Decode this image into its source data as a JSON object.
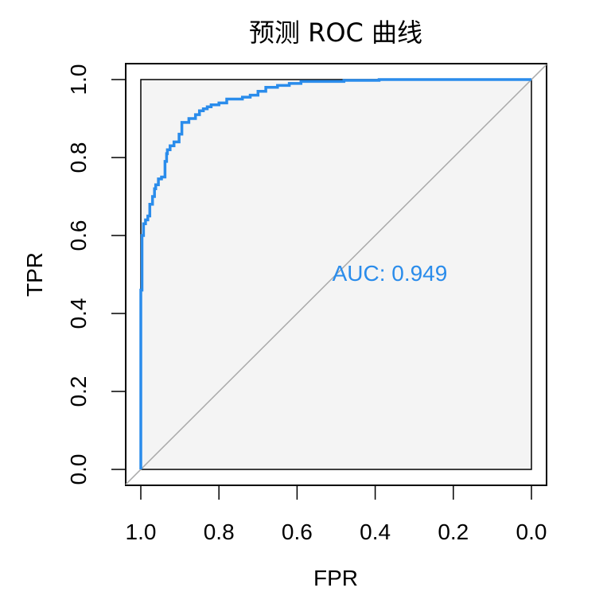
{
  "chart_data": {
    "type": "line",
    "title": "预测 ROC 曲线",
    "xlabel": "FPR",
    "ylabel": "TPR",
    "x_axis_reversed": true,
    "xlim": [
      1.0,
      0.0
    ],
    "ylim": [
      0.0,
      1.0
    ],
    "xticks": [
      "1.0",
      "0.8",
      "0.6",
      "0.4",
      "0.2",
      "0.0"
    ],
    "xtick_values": [
      1.0,
      0.8,
      0.6,
      0.4,
      0.2,
      0.0
    ],
    "yticks": [
      "0.0",
      "0.2",
      "0.4",
      "0.6",
      "0.8",
      "1.0"
    ],
    "ytick_values": [
      0.0,
      0.2,
      0.4,
      0.6,
      0.8,
      1.0
    ],
    "grid": false,
    "auc_label": "AUC: 0.949",
    "auc_label_position": [
      0.51,
      0.48
    ],
    "diagonal": [
      [
        1.0,
        0.0
      ],
      [
        0.0,
        1.0
      ]
    ],
    "series": [
      {
        "specificity": [
          1.0,
          1.0,
          0.997,
          0.997,
          0.993,
          0.993,
          0.988,
          0.988,
          0.982,
          0.982,
          0.977,
          0.977,
          0.97,
          0.97,
          0.965,
          0.965,
          0.962,
          0.962,
          0.955,
          0.955,
          0.947,
          0.947,
          0.938,
          0.938,
          0.934,
          0.934,
          0.932,
          0.932,
          0.925,
          0.925,
          0.915,
          0.915,
          0.902,
          0.902,
          0.895,
          0.895,
          0.877,
          0.877,
          0.86,
          0.86,
          0.85,
          0.85,
          0.84,
          0.84,
          0.83,
          0.83,
          0.82,
          0.82,
          0.8,
          0.8,
          0.78,
          0.78,
          0.74,
          0.74,
          0.72,
          0.72,
          0.7,
          0.7,
          0.68,
          0.68,
          0.65,
          0.65,
          0.62,
          0.62,
          0.59,
          0.59,
          0.48,
          0.48,
          0.39,
          0.39,
          0.0
        ],
        "sensitivity": [
          0.0,
          0.46,
          0.46,
          0.6,
          0.6,
          0.63,
          0.63,
          0.64,
          0.64,
          0.65,
          0.65,
          0.68,
          0.68,
          0.7,
          0.7,
          0.72,
          0.72,
          0.73,
          0.73,
          0.745,
          0.745,
          0.75,
          0.75,
          0.79,
          0.79,
          0.81,
          0.81,
          0.82,
          0.82,
          0.83,
          0.83,
          0.84,
          0.84,
          0.86,
          0.86,
          0.89,
          0.89,
          0.9,
          0.9,
          0.91,
          0.91,
          0.92,
          0.92,
          0.925,
          0.925,
          0.93,
          0.93,
          0.935,
          0.935,
          0.94,
          0.94,
          0.95,
          0.95,
          0.955,
          0.955,
          0.96,
          0.96,
          0.97,
          0.97,
          0.98,
          0.98,
          0.985,
          0.985,
          0.99,
          0.99,
          0.995,
          0.995,
          0.998,
          0.998,
          1.0,
          1.0
        ]
      }
    ]
  },
  "colors": {
    "curve": "#2A8CEB",
    "auc_text": "#2A8CEB",
    "diagonal": "#AAAAAA",
    "plot_fill": "#F4F4F4",
    "axis": "#000000",
    "background": "#FFFFFF"
  }
}
